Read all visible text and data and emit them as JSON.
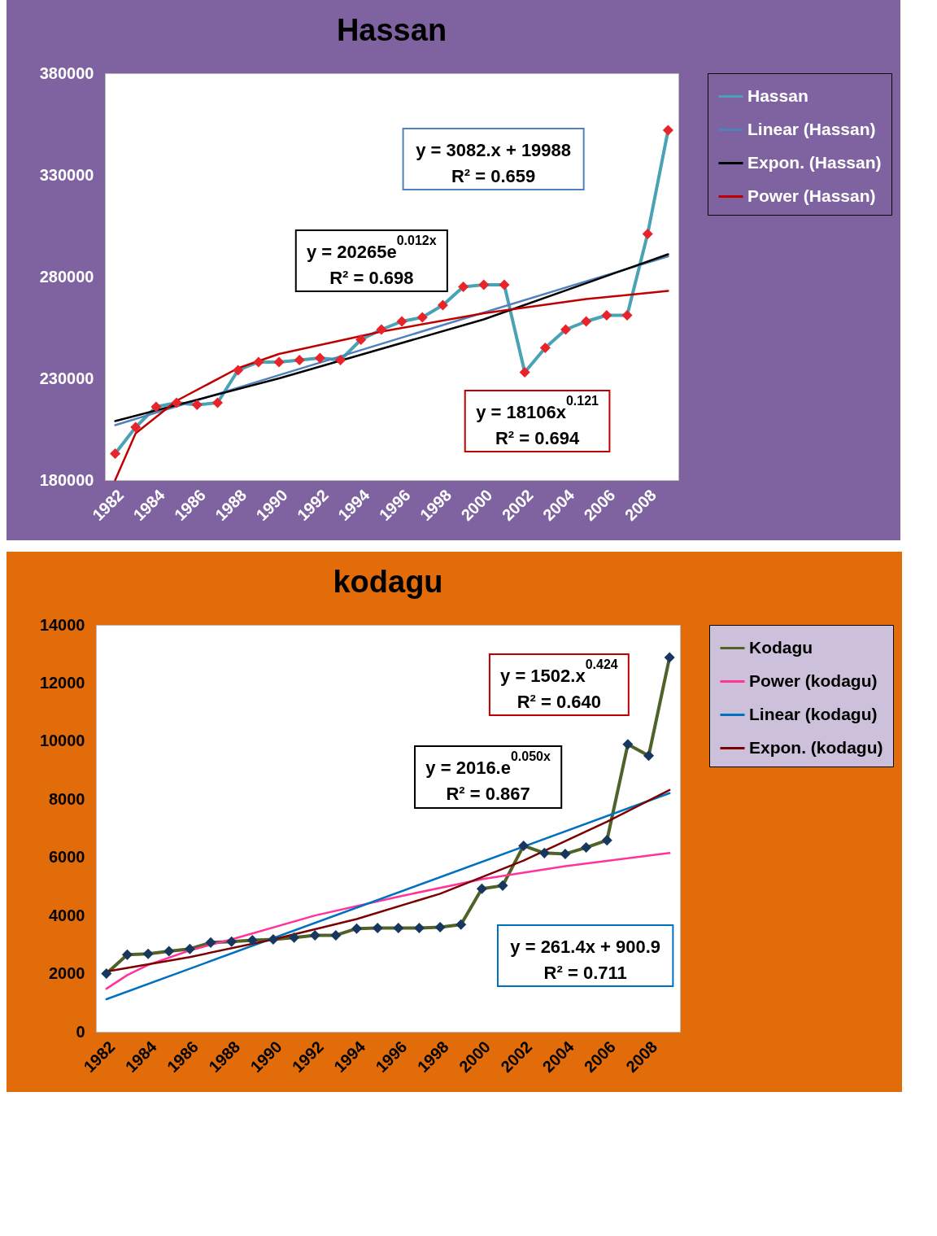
{
  "chart_data": [
    {
      "type": "line",
      "title": "Hassan",
      "x": [
        1982,
        1983,
        1984,
        1985,
        1986,
        1987,
        1988,
        1989,
        1990,
        1991,
        1992,
        1993,
        1994,
        1995,
        1996,
        1997,
        1998,
        1999,
        2000,
        2001,
        2002,
        2003,
        2004,
        2005,
        2006,
        2007,
        2008,
        2009
      ],
      "xlim": [
        1981.5,
        2009.5
      ],
      "xticks": [
        1982,
        1984,
        1986,
        1988,
        1990,
        1992,
        1994,
        1996,
        1998,
        2000,
        2002,
        2004,
        2006,
        2008
      ],
      "ylim": [
        180000,
        380000
      ],
      "yticks": [
        180000,
        230000,
        280000,
        330000,
        380000
      ],
      "series": [
        {
          "name": "Hassan",
          "color": "#4aa3b5",
          "marker": "diamond",
          "colors": [
            "#e8232a",
            "#e8232a",
            "#e8232a",
            "#e8232a",
            "#e8232a",
            "#e8232a",
            "#e8232a",
            "#e8232a",
            "#e8232a",
            "#e8232a",
            "#e8232a",
            "#e8232a",
            "#e8232a",
            "#e8232a",
            "#e8232a",
            "#e8232a",
            "#e8232a",
            "#e8232a",
            "#e8232a",
            "#e8232a",
            "#e8232a",
            "#e8232a",
            "#e8232a",
            "#e8232a",
            "#e8232a",
            "#e8232a",
            "#e8232a",
            "#e8232a"
          ],
          "values": [
            193000,
            206000,
            216000,
            218000,
            217000,
            218000,
            234000,
            238000,
            238000,
            239000,
            240000,
            239000,
            249000,
            254000,
            258000,
            260000,
            266000,
            275000,
            276000,
            276000,
            233000,
            245000,
            254000,
            258000,
            261000,
            261000,
            301000,
            352000
          ]
        },
        {
          "name": "Linear (Hassan)",
          "type": "line",
          "color": "#4f81bd",
          "x": [
            1982,
            2009
          ],
          "values": [
            207000,
            290000
          ]
        },
        {
          "name": "Expon. (Hassan)",
          "type": "line",
          "color": "#000000",
          "x": [
            1982,
            1990,
            2000,
            2009
          ],
          "values": [
            209000,
            230000,
            259000,
            291000
          ]
        },
        {
          "name": "Power (Hassan)",
          "type": "line",
          "color": "#c00000",
          "x": [
            1982,
            1983,
            1985,
            1988,
            1990,
            1995,
            2000,
            2005,
            2009
          ],
          "values": [
            180000,
            203000,
            219000,
            235000,
            242000,
            253000,
            262000,
            269000,
            273000
          ]
        }
      ],
      "legend": "right",
      "annotations": [
        "y = 3082.x + 19988",
        "R² = 0.659",
        "y = 20265e$^{0.012x}$",
        "R² = 0.698",
        "y = 18106x$^{0.121}$",
        "R² = 0.694"
      ]
    },
    {
      "type": "line",
      "title": "kodagu",
      "x": [
        1982,
        1983,
        1984,
        1985,
        1986,
        1987,
        1988,
        1989,
        1990,
        1991,
        1992,
        1993,
        1994,
        1995,
        1996,
        1997,
        1998,
        1999,
        2000,
        2001,
        2002,
        2003,
        2004,
        2005,
        2006,
        2007,
        2008,
        2009
      ],
      "xlim": [
        1981.5,
        2009.5
      ],
      "xticks": [
        1982,
        1984,
        1986,
        1988,
        1990,
        1992,
        1994,
        1996,
        1998,
        2000,
        2002,
        2004,
        2006,
        2008
      ],
      "ylim": [
        0,
        14000
      ],
      "yticks": [
        0,
        2000,
        4000,
        6000,
        8000,
        10000,
        12000,
        14000
      ],
      "series": [
        {
          "name": "Kodagu",
          "color": "#4f6228",
          "marker": "diamond",
          "colors": [
            "#17375e",
            "#17375e",
            "#17375e",
            "#17375e",
            "#17375e",
            "#17375e",
            "#17375e",
            "#17375e",
            "#17375e",
            "#17375e",
            "#17375e",
            "#17375e",
            "#17375e",
            "#17375e",
            "#17375e",
            "#17375e",
            "#17375e",
            "#17375e",
            "#17375e",
            "#17375e",
            "#17375e",
            "#17375e",
            "#17375e",
            "#17375e",
            "#17375e",
            "#17375e",
            "#17375e",
            "#17375e"
          ],
          "values": [
            2000,
            2650,
            2680,
            2770,
            2850,
            3070,
            3100,
            3150,
            3180,
            3240,
            3320,
            3320,
            3550,
            3570,
            3570,
            3570,
            3600,
            3690,
            4920,
            5030,
            6400,
            6150,
            6120,
            6340,
            6590,
            9890,
            9500,
            12880
          ]
        },
        {
          "name": "Power (kodagu)",
          "type": "line",
          "color": "#ff3399",
          "x": [
            1982,
            1983,
            1984,
            1986,
            1988,
            1992,
            1996,
            2000,
            2004,
            2009
          ],
          "values": [
            1480,
            1950,
            2300,
            2800,
            3180,
            4000,
            4650,
            5250,
            5700,
            6150
          ]
        },
        {
          "name": "Linear (kodagu)",
          "type": "line",
          "color": "#0070c0",
          "x": [
            1982,
            2009
          ],
          "values": [
            1120,
            8210
          ]
        },
        {
          "name": "Expon. (kodagu)",
          "type": "line",
          "color": "#7b0000",
          "x": [
            1982,
            1986,
            1990,
            1994,
            1998,
            2002,
            2006,
            2009
          ],
          "values": [
            2070,
            2570,
            3180,
            3880,
            4750,
            5890,
            7230,
            8320
          ]
        }
      ],
      "legend": "right",
      "annotations": [
        "y = 1502.x$^{0.424}$",
        "R² = 0.640",
        "y = 2016.e$^{0.050x}$",
        "R² = 0.867",
        "y = 261.4x + 900.9",
        "R² = 0.711"
      ]
    }
  ]
}
